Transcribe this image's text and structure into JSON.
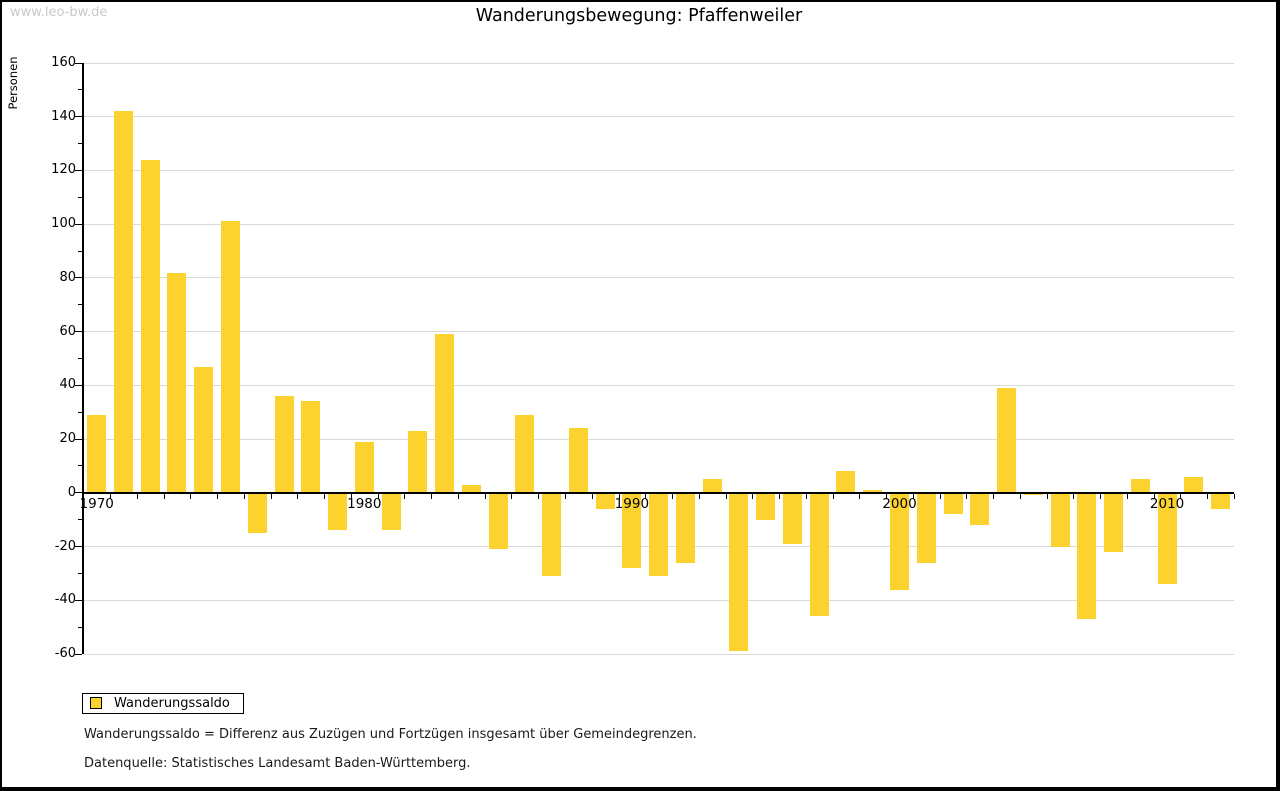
{
  "watermark": "www.leo-bw.de",
  "title": "Wanderungsbewegung: Pfaffenweiler",
  "y_axis": {
    "label": "Personen",
    "tick_labels": [
      160,
      140,
      120,
      100,
      80,
      60,
      40,
      20,
      0,
      -20,
      -40,
      -60
    ]
  },
  "x_axis": {
    "tick_years": [
      1970,
      1980,
      1990,
      2000,
      2010
    ]
  },
  "legend": {
    "label": "Wanderungssaldo"
  },
  "notes": [
    "Wanderungssaldo = Differenz aus Zuzügen und Fortzügen insgesamt über Gemeindegrenzen.",
    "Datenquelle: Statistisches Landesamt Baden-Württemberg."
  ],
  "colors": {
    "bar": "#fcd32e",
    "grid": "#d9d9d9",
    "axis": "#000000",
    "watermark": "#c9c9c9",
    "background": "#ffffff",
    "frame": "#000000"
  },
  "chart_data": {
    "type": "bar",
    "title": "Wanderungsbewegung: Pfaffenweiler",
    "series_name": "Wanderungssaldo",
    "xlabel": "",
    "ylabel": "Personen",
    "ylim": [
      -60,
      160
    ],
    "y_major_step": 20,
    "y_minor_step": 10,
    "grid": "horizontal-major",
    "legend_position": "bottom-left",
    "categories": [
      1970,
      1971,
      1972,
      1973,
      1974,
      1975,
      1976,
      1977,
      1978,
      1979,
      1980,
      1981,
      1982,
      1983,
      1984,
      1985,
      1986,
      1987,
      1988,
      1989,
      1990,
      1991,
      1992,
      1993,
      1994,
      1995,
      1996,
      1997,
      1998,
      1999,
      2000,
      2001,
      2002,
      2003,
      2004,
      2005,
      2006,
      2007,
      2008,
      2009,
      2010,
      2011,
      2012
    ],
    "values": [
      29,
      142,
      124,
      82,
      47,
      101,
      -15,
      36,
      34,
      -14,
      19,
      -14,
      23,
      59,
      3,
      -21,
      29,
      -31,
      24,
      -6,
      -28,
      -31,
      -26,
      5,
      -59,
      -10,
      -19,
      -46,
      8,
      1,
      -36,
      -26,
      -8,
      -12,
      39,
      -1,
      -20,
      -47,
      -22,
      5,
      -34,
      6,
      -6
    ]
  }
}
